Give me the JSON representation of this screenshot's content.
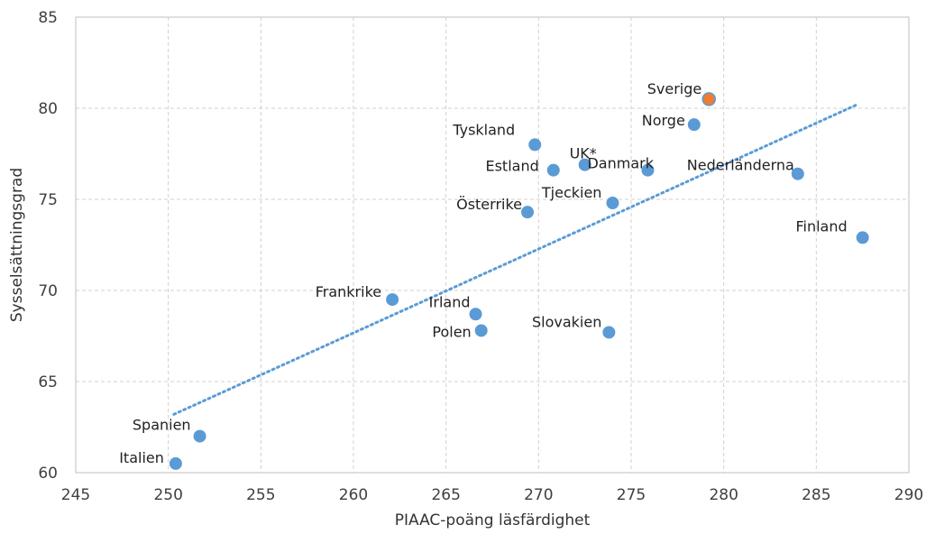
{
  "chart_data": {
    "type": "scatter",
    "xlabel": "PIAAC-poäng läsfärdighet",
    "ylabel": "Sysselsättningsgrad",
    "xlim": [
      245,
      290
    ],
    "ylim": [
      60,
      85
    ],
    "x_ticks": [
      245,
      250,
      255,
      260,
      265,
      270,
      275,
      280,
      285,
      290
    ],
    "y_ticks": [
      60,
      65,
      70,
      75,
      80,
      85
    ],
    "grid": true,
    "colors": {
      "default": "#5b9bd5",
      "highlight": "#ed7d31",
      "trendline": "#5b9bd5"
    },
    "points": [
      {
        "label": "Sverige",
        "x": 279.2,
        "y": 80.5,
        "highlight": true
      },
      {
        "label": "Norge",
        "x": 278.4,
        "y": 79.1
      },
      {
        "label": "Tyskland",
        "x": 269.8,
        "y": 78.0
      },
      {
        "label": "UK*",
        "x": 272.5,
        "y": 76.9
      },
      {
        "label": "Danmark",
        "x": 275.9,
        "y": 76.6
      },
      {
        "label": "Estland",
        "x": 270.8,
        "y": 76.6
      },
      {
        "label": "Nederländerna",
        "x": 284.0,
        "y": 76.4
      },
      {
        "label": "Tjeckien",
        "x": 274.0,
        "y": 74.8
      },
      {
        "label": "Österrike",
        "x": 269.4,
        "y": 74.3
      },
      {
        "label": "Finland",
        "x": 287.5,
        "y": 72.9
      },
      {
        "label": "Frankrike",
        "x": 262.1,
        "y": 69.5
      },
      {
        "label": "Irland",
        "x": 266.6,
        "y": 68.7
      },
      {
        "label": "Polen",
        "x": 266.9,
        "y": 67.8
      },
      {
        "label": "Slovakien",
        "x": 273.8,
        "y": 67.7
      },
      {
        "label": "Spanien",
        "x": 251.7,
        "y": 62.0
      },
      {
        "label": "Italien",
        "x": 250.4,
        "y": 60.5
      }
    ],
    "trendline": {
      "type": "linear",
      "style": "dotted",
      "x": [
        250.3,
        287.2
      ],
      "y": [
        63.2,
        80.2
      ]
    }
  }
}
